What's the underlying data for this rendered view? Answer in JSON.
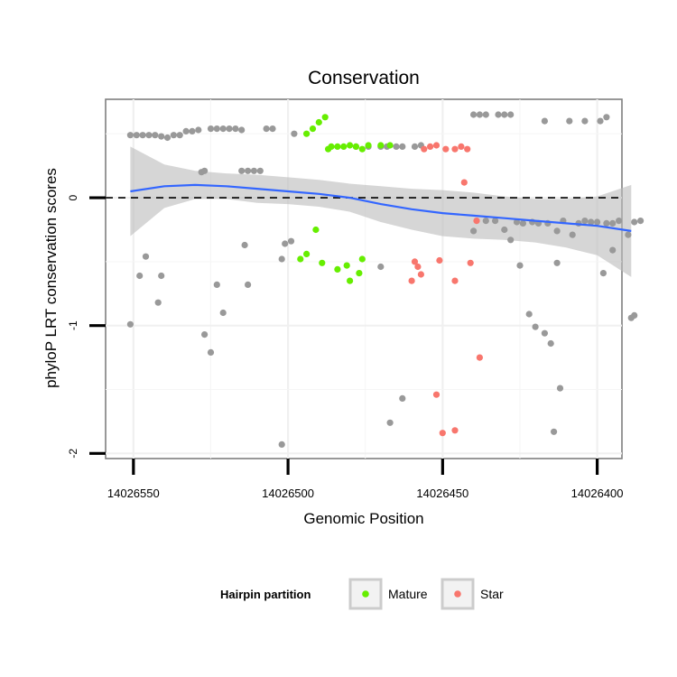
{
  "chart_data": {
    "type": "scatter",
    "title": "Conservation",
    "xlabel": "Genomic Position",
    "ylabel": "phyloP LRT conservation scores",
    "x_reversed": true,
    "xlim": [
      14026559,
      14026392
    ],
    "ylim": [
      -2.04,
      0.77
    ],
    "x_ticks": [
      14026550,
      14026500,
      14026450,
      14026400
    ],
    "x_tick_labels": [
      "14026550",
      "14026500",
      "14026450",
      "14026400"
    ],
    "y_ticks": [
      -2,
      -1,
      0
    ],
    "y_tick_labels": [
      "-2",
      "-1",
      "0"
    ],
    "grid": true,
    "reference_line": {
      "y": 0,
      "style": "dashed",
      "color": "#000000"
    },
    "legend": {
      "title": "Hairpin partition",
      "position": "bottom",
      "entries": [
        {
          "label": "Mature",
          "color": "#66ee00"
        },
        {
          "label": "Star",
          "color": "#f8766d"
        }
      ]
    },
    "smooth": {
      "color": "#3366ff",
      "band_color": "#bbbbbb",
      "x": [
        14026551,
        14026540,
        14026530,
        14026520,
        14026510,
        14026500,
        14026490,
        14026480,
        14026470,
        14026460,
        14026450,
        14026440,
        14026430,
        14026420,
        14026410,
        14026400,
        14026389
      ],
      "y": [
        0.05,
        0.09,
        0.1,
        0.09,
        0.07,
        0.05,
        0.03,
        0.0,
        -0.05,
        -0.09,
        -0.12,
        -0.14,
        -0.16,
        -0.18,
        -0.2,
        -0.22,
        -0.26
      ],
      "lower": [
        -0.3,
        -0.08,
        -0.01,
        -0.01,
        -0.04,
        -0.05,
        -0.07,
        -0.11,
        -0.19,
        -0.25,
        -0.3,
        -0.32,
        -0.33,
        -0.35,
        -0.39,
        -0.45,
        -0.62
      ],
      "upper": [
        0.4,
        0.26,
        0.21,
        0.19,
        0.18,
        0.16,
        0.14,
        0.11,
        0.09,
        0.07,
        0.06,
        0.04,
        0.01,
        -0.01,
        -0.01,
        0.01,
        0.1
      ]
    },
    "series": [
      {
        "name": "",
        "color": "#999999",
        "points": [
          [
            14026551,
            0.49
          ],
          [
            14026549,
            0.49
          ],
          [
            14026547,
            0.49
          ],
          [
            14026545,
            0.49
          ],
          [
            14026543,
            0.49
          ],
          [
            14026541,
            0.48
          ],
          [
            14026539,
            0.47
          ],
          [
            14026537,
            0.49
          ],
          [
            14026535,
            0.49
          ],
          [
            14026533,
            0.52
          ],
          [
            14026531,
            0.52
          ],
          [
            14026529,
            0.53
          ],
          [
            14026525,
            0.54
          ],
          [
            14026523,
            0.54
          ],
          [
            14026521,
            0.54
          ],
          [
            14026519,
            0.54
          ],
          [
            14026517,
            0.54
          ],
          [
            14026515,
            0.53
          ],
          [
            14026507,
            0.54
          ],
          [
            14026505,
            0.54
          ],
          [
            14026498,
            0.5
          ],
          [
            14026528,
            0.2
          ],
          [
            14026527,
            0.21
          ],
          [
            14026515,
            0.21
          ],
          [
            14026513,
            0.21
          ],
          [
            14026511,
            0.21
          ],
          [
            14026509,
            0.21
          ],
          [
            14026551,
            -0.99
          ],
          [
            14026548,
            -0.61
          ],
          [
            14026546,
            -0.46
          ],
          [
            14026542,
            -0.82
          ],
          [
            14026541,
            -0.61
          ],
          [
            14026527,
            -1.07
          ],
          [
            14026525,
            -1.21
          ],
          [
            14026523,
            -0.68
          ],
          [
            14026521,
            -0.9
          ],
          [
            14026514,
            -0.37
          ],
          [
            14026513,
            -0.68
          ],
          [
            14026502,
            -0.48
          ],
          [
            14026501,
            -0.36
          ],
          [
            14026499,
            -0.34
          ],
          [
            14026502,
            -1.93
          ],
          [
            14026478,
            0.4
          ],
          [
            14026474,
            0.4
          ],
          [
            14026470,
            0.4
          ],
          [
            14026468,
            0.4
          ],
          [
            14026465,
            0.4
          ],
          [
            14026463,
            0.4
          ],
          [
            14026459,
            0.4
          ],
          [
            14026457,
            0.41
          ],
          [
            14026470,
            -0.54
          ],
          [
            14026467,
            -1.76
          ],
          [
            14026463,
            -1.57
          ],
          [
            14026440,
            0.65
          ],
          [
            14026438,
            0.65
          ],
          [
            14026436,
            0.65
          ],
          [
            14026432,
            0.65
          ],
          [
            14026430,
            0.65
          ],
          [
            14026428,
            0.65
          ],
          [
            14026417,
            0.6
          ],
          [
            14026409,
            0.6
          ],
          [
            14026404,
            0.6
          ],
          [
            14026399,
            0.6
          ],
          [
            14026397,
            0.63
          ],
          [
            14026440,
            -0.26
          ],
          [
            14026436,
            -0.18
          ],
          [
            14026433,
            -0.18
          ],
          [
            14026430,
            -0.25
          ],
          [
            14026428,
            -0.33
          ],
          [
            14026426,
            -0.19
          ],
          [
            14026424,
            -0.2
          ],
          [
            14026421,
            -0.19
          ],
          [
            14026419,
            -0.2
          ],
          [
            14026416,
            -0.2
          ],
          [
            14026413,
            -0.26
          ],
          [
            14026411,
            -0.18
          ],
          [
            14026408,
            -0.29
          ],
          [
            14026406,
            -0.2
          ],
          [
            14026404,
            -0.18
          ],
          [
            14026402,
            -0.19
          ],
          [
            14026400,
            -0.19
          ],
          [
            14026397,
            -0.2
          ],
          [
            14026395,
            -0.2
          ],
          [
            14026393,
            -0.18
          ],
          [
            14026390,
            -0.29
          ],
          [
            14026388,
            -0.19
          ],
          [
            14026425,
            -0.53
          ],
          [
            14026422,
            -0.91
          ],
          [
            14026420,
            -1.01
          ],
          [
            14026417,
            -1.06
          ],
          [
            14026415,
            -1.14
          ],
          [
            14026413,
            -0.51
          ],
          [
            14026412,
            -1.49
          ],
          [
            14026414,
            -1.83
          ],
          [
            14026395,
            -0.41
          ],
          [
            14026398,
            -0.59
          ],
          [
            14026389,
            -0.94
          ],
          [
            14026388,
            -0.92
          ],
          [
            14026386,
            -0.18
          ]
        ]
      },
      {
        "name": "Mature",
        "color": "#66ee00",
        "points": [
          [
            14026494,
            0.5
          ],
          [
            14026492,
            0.54
          ],
          [
            14026490,
            0.59
          ],
          [
            14026488,
            0.63
          ],
          [
            14026487,
            0.38
          ],
          [
            14026486,
            0.4
          ],
          [
            14026484,
            0.4
          ],
          [
            14026482,
            0.4
          ],
          [
            14026480,
            0.41
          ],
          [
            14026478,
            0.4
          ],
          [
            14026476,
            0.38
          ],
          [
            14026474,
            0.41
          ],
          [
            14026470,
            0.41
          ],
          [
            14026467,
            0.41
          ],
          [
            14026491,
            -0.25
          ],
          [
            14026496,
            -0.48
          ],
          [
            14026494,
            -0.44
          ],
          [
            14026489,
            -0.51
          ],
          [
            14026484,
            -0.56
          ],
          [
            14026481,
            -0.53
          ],
          [
            14026480,
            -0.65
          ],
          [
            14026477,
            -0.59
          ],
          [
            14026476,
            -0.48
          ]
        ]
      },
      {
        "name": "Star",
        "color": "#f8766d",
        "points": [
          [
            14026456,
            0.38
          ],
          [
            14026454,
            0.4
          ],
          [
            14026452,
            0.41
          ],
          [
            14026449,
            0.38
          ],
          [
            14026446,
            0.38
          ],
          [
            14026444,
            0.4
          ],
          [
            14026442,
            0.38
          ],
          [
            14026443,
            0.12
          ],
          [
            14026459,
            -0.5
          ],
          [
            14026458,
            -0.54
          ],
          [
            14026457,
            -0.6
          ],
          [
            14026460,
            -0.65
          ],
          [
            14026451,
            -0.49
          ],
          [
            14026446,
            -0.65
          ],
          [
            14026441,
            -0.51
          ],
          [
            14026439,
            -0.18
          ],
          [
            14026438,
            -1.25
          ],
          [
            14026452,
            -1.54
          ],
          [
            14026450,
            -1.84
          ],
          [
            14026446,
            -1.82
          ]
        ]
      }
    ]
  }
}
